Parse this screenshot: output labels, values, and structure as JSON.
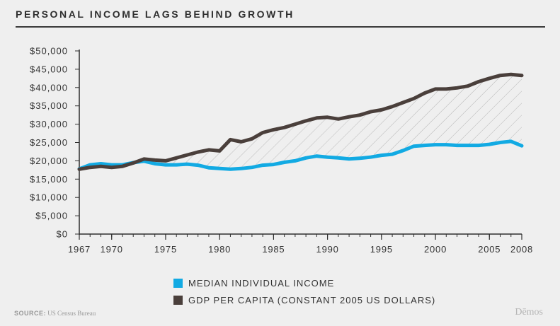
{
  "header": {
    "title": "PERSONAL INCOME LAGS BEHIND GROWTH"
  },
  "footer": {
    "source_label": "SOURCE:",
    "source_text": "US Census Bureau",
    "brand": "Dēmos"
  },
  "colors": {
    "income": "#12aae3",
    "gdp": "#4a3f3b",
    "axis": "#2e2e2e",
    "hatch": "#aaaaaa",
    "background": "#efefef"
  },
  "chart_data": {
    "type": "line",
    "title": "PERSONAL INCOME LAGS BEHIND GROWTH",
    "xlabel": "",
    "ylabel": "",
    "xlim": [
      1967,
      2008
    ],
    "ylim": [
      0,
      50000
    ],
    "y_ticks": [
      0,
      5000,
      10000,
      15000,
      20000,
      25000,
      30000,
      35000,
      40000,
      45000,
      50000
    ],
    "y_tick_labels": [
      "$0",
      "$5,000",
      "$10,000",
      "$15,000",
      "$20,000",
      "$25,000",
      "$30,000",
      "$35,000",
      "$40,000",
      "$45,000",
      "$50,000"
    ],
    "x_ticks": [
      1967,
      1970,
      1975,
      1980,
      1985,
      1990,
      1995,
      2000,
      2005,
      2008
    ],
    "x_tick_labels": [
      "1967",
      "1970",
      "1975",
      "1980",
      "1985",
      "1990",
      "1995",
      "2000",
      "2005",
      "2008"
    ],
    "x": [
      1967,
      1968,
      1969,
      1970,
      1971,
      1972,
      1973,
      1974,
      1975,
      1976,
      1977,
      1978,
      1979,
      1980,
      1981,
      1982,
      1983,
      1984,
      1985,
      1986,
      1987,
      1988,
      1989,
      1990,
      1991,
      1992,
      1993,
      1994,
      1995,
      1996,
      1997,
      1998,
      1999,
      2000,
      2001,
      2002,
      2003,
      2004,
      2005,
      2006,
      2007,
      2008
    ],
    "series": [
      {
        "name": "MEDIAN INDIVIDUAL INCOME",
        "color": "#12aae3",
        "values": [
          17800,
          18900,
          19200,
          18900,
          18900,
          19500,
          19900,
          19200,
          18900,
          18900,
          19100,
          18800,
          18100,
          17900,
          17700,
          17900,
          18200,
          18800,
          19000,
          19600,
          20000,
          20800,
          21300,
          21000,
          20800,
          20500,
          20700,
          21000,
          21500,
          21800,
          22800,
          24000,
          24200,
          24400,
          24400,
          24200,
          24200,
          24200,
          24500,
          25000,
          25300,
          24100
        ]
      },
      {
        "name": "GDP PER CAPITA (CONSTANT 2005 US DOLLARS)",
        "color": "#4a3f3b",
        "values": [
          17700,
          18200,
          18500,
          18200,
          18500,
          19400,
          20500,
          20200,
          20000,
          20800,
          21600,
          22400,
          23000,
          22700,
          25800,
          25200,
          26000,
          27700,
          28500,
          29100,
          30000,
          30900,
          31700,
          31900,
          31400,
          32000,
          32500,
          33400,
          33900,
          34800,
          35900,
          37000,
          38500,
          39600,
          39600,
          39900,
          40400,
          41600,
          42500,
          43300,
          43600,
          43300
        ]
      }
    ],
    "grid": false,
    "legend_position": "bottom"
  }
}
